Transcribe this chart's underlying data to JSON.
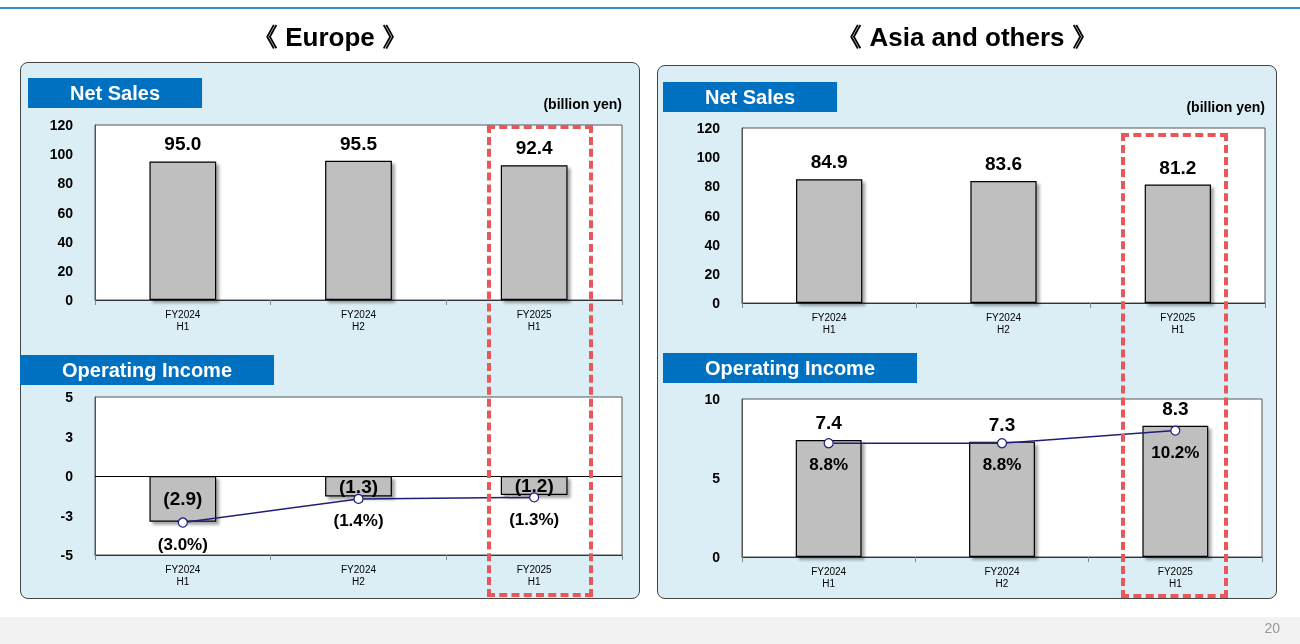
{
  "chart_data": [
    {
      "type": "bar",
      "title": "Net Sales",
      "ylabel": "(billion yen)",
      "annotations": [
        "《 Europe 》"
      ],
      "categories": [
        "FY2024\nH1",
        "FY2024\nH2",
        "FY2025\nH1"
      ],
      "series": [
        {
          "color": "#bfbfbf",
          "values": [
            95.0,
            95.5,
            92.4
          ],
          "value_labels": [
            "95.0",
            "95.5",
            "92.4"
          ]
        }
      ],
      "ylim": [
        0,
        120
      ],
      "yticks": [
        0,
        20,
        40,
        60,
        80,
        100,
        120
      ],
      "grid": false
    },
    {
      "type": "bar",
      "title": "Operating Income",
      "categories": [
        "FY2024\nH1",
        "FY2024\nH2",
        "FY2025\nH1"
      ],
      "series": [
        {
          "color": "#bfbfbf",
          "values": [
            -2.9,
            -1.3,
            -1.2
          ],
          "value_labels": [
            "(2.9)",
            "(1.3)",
            "(1.2)"
          ]
        },
        {
          "type": "line",
          "axis": "y2",
          "color": "#1f1f7a",
          "values": [
            -3.0,
            -1.4,
            -1.3
          ],
          "value_labels": [
            "(3.0%)",
            "(1.4%)",
            "(1.3%)"
          ]
        }
      ],
      "ylim": [
        -5,
        5
      ],
      "yticks": [
        -5,
        {
          "value": -2.5,
          "label": "-3"
        },
        0,
        {
          "value": 2.5,
          "label": "3"
        },
        5
      ],
      "y2lim": [
        -5.2,
        5.5
      ],
      "marker": "circle",
      "ref_lines": [
        {
          "axis": "y",
          "value": 0,
          "color": "#000000"
        }
      ],
      "grid": false
    },
    {
      "type": "bar",
      "title": "Net Sales",
      "ylabel": "(billion yen)",
      "annotations": [
        "《 Asia and others 》"
      ],
      "categories": [
        "FY2024\nH1",
        "FY2024\nH2",
        "FY2025\nH1"
      ],
      "series": [
        {
          "color": "#bfbfbf",
          "values": [
            84.9,
            83.6,
            81.2
          ],
          "value_labels": [
            "84.9",
            "83.6",
            "81.2"
          ]
        }
      ],
      "ylim": [
        0,
        120
      ],
      "yticks": [
        0,
        20,
        40,
        60,
        80,
        100,
        120
      ],
      "grid": false
    },
    {
      "type": "bar",
      "title": "Operating Income",
      "annotations": [
        "20"
      ],
      "categories": [
        "FY2024\nH1",
        "FY2024\nH2",
        "FY2025\nH1"
      ],
      "series": [
        {
          "color": "#bfbfbf",
          "values": [
            7.4,
            7.3,
            8.3
          ],
          "value_labels": [
            "7.4",
            "7.3",
            "8.3"
          ]
        },
        {
          "type": "line",
          "axis": "y2",
          "color": "#1f1f7a",
          "values": [
            8.8,
            8.8,
            10.2
          ],
          "value_labels": [
            "8.8%",
            "8.8%",
            "10.2%"
          ]
        }
      ],
      "ylim": [
        0,
        10
      ],
      "yticks": [
        0,
        5,
        10
      ],
      "y2lim": [
        -3.8,
        13.7
      ],
      "marker": "circle",
      "grid": false
    }
  ]
}
